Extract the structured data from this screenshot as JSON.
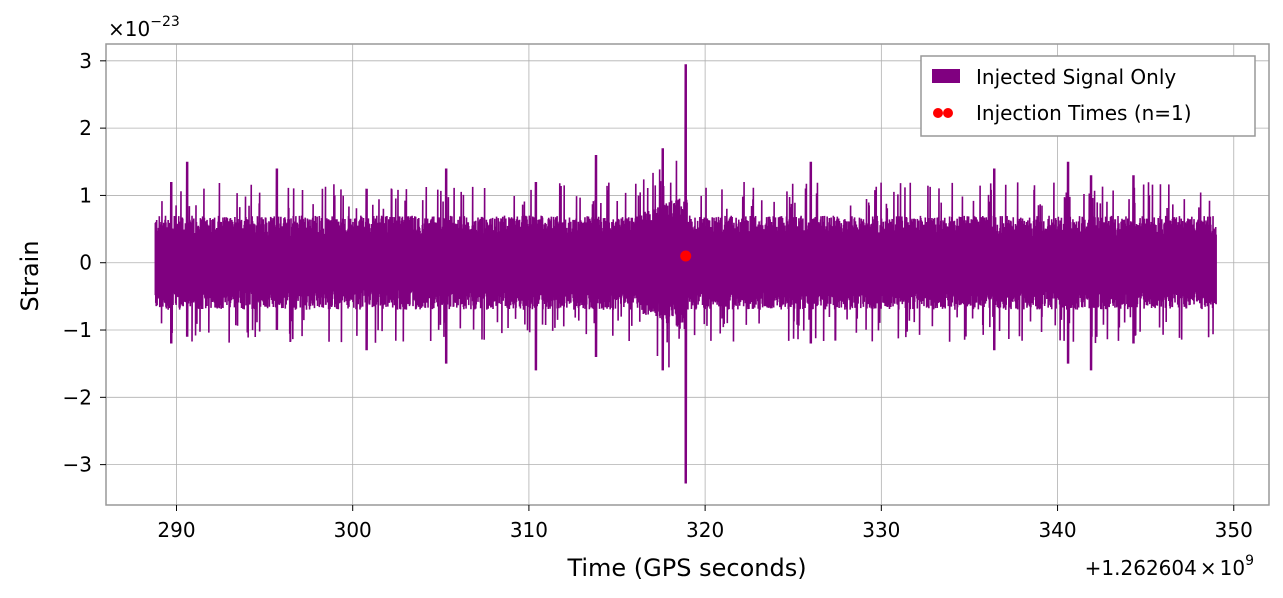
{
  "chart_data": {
    "type": "line",
    "xlabel": "Time (GPS seconds)",
    "ylabel": "Strain",
    "x_offset_label": {
      "prefix": "+1.262604",
      "times": "×",
      "base": "10",
      "exp": "9"
    },
    "y_multiplier_label": {
      "times": "×",
      "base": "10",
      "exp": "−23"
    },
    "xlim": [
      286.0,
      352.0
    ],
    "ylim": [
      -3.6,
      3.25
    ],
    "x_ticks": [
      290,
      300,
      310,
      320,
      330,
      340,
      350
    ],
    "x_tick_labels": [
      "290",
      "300",
      "310",
      "320",
      "330",
      "340",
      "350"
    ],
    "y_ticks": [
      -3,
      -2,
      -1,
      0,
      1,
      2,
      3
    ],
    "y_tick_labels": [
      "−3",
      "−2",
      "−1",
      "0",
      "1",
      "2",
      "3"
    ],
    "grid": true,
    "legend_position": "top-right",
    "series": [
      {
        "name": "Injected Signal Only",
        "kind": "strain-timeseries",
        "color": "#800080",
        "x_start": 288.8,
        "x_end": 349.0,
        "typical_envelope": 0.7,
        "peaks": [
          {
            "x": 289.7,
            "high": 1.2,
            "low": -1.2
          },
          {
            "x": 290.6,
            "high": 1.5,
            "low": -1.1
          },
          {
            "x": 295.7,
            "high": 1.4,
            "low": -1.0
          },
          {
            "x": 300.8,
            "high": 1.1,
            "low": -1.3
          },
          {
            "x": 305.3,
            "high": 1.4,
            "low": -1.5
          },
          {
            "x": 310.4,
            "high": 1.2,
            "low": -1.6
          },
          {
            "x": 313.8,
            "high": 1.6,
            "low": -1.4
          },
          {
            "x": 317.6,
            "high": 1.7,
            "low": -1.6
          },
          {
            "x": 318.9,
            "high": 2.95,
            "low": -3.28
          },
          {
            "x": 326.0,
            "high": 1.5,
            "low": -1.2
          },
          {
            "x": 336.4,
            "high": 1.4,
            "low": -1.3
          },
          {
            "x": 340.6,
            "high": 1.5,
            "low": -1.5
          },
          {
            "x": 341.9,
            "high": 1.3,
            "low": -1.6
          },
          {
            "x": 344.3,
            "high": 1.3,
            "low": -1.2
          }
        ]
      },
      {
        "name": "Injection Times (n=1)",
        "kind": "scatter",
        "color": "#ff0000",
        "points": [
          {
            "x": 318.9,
            "y": 0.1
          }
        ]
      }
    ]
  }
}
